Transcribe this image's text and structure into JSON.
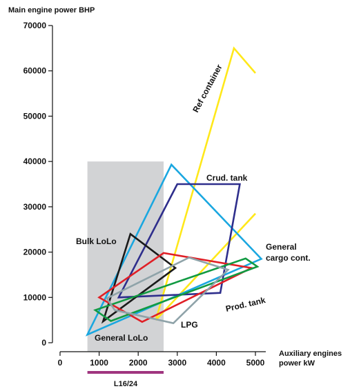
{
  "chart_data": {
    "type": "line",
    "ylabel": "Main engine power BHP",
    "xlabel": [
      "Auxiliary engines",
      "power kW"
    ],
    "xlim": [
      0,
      5300
    ],
    "ylim": [
      0,
      70000
    ],
    "x_ticks": [
      0,
      1000,
      2000,
      3000,
      4000,
      5000
    ],
    "y_ticks": [
      0,
      10000,
      20000,
      30000,
      40000,
      50000,
      60000,
      70000
    ],
    "x_tick_labels": [
      "0",
      "1000",
      "2000",
      "3000",
      "4000",
      "5000"
    ],
    "y_tick_labels": [
      "0",
      "10000",
      "20000",
      "30000",
      "40000",
      "50000",
      "60000",
      "70000"
    ],
    "grid": false,
    "shaded_band": {
      "x": [
        700,
        2650
      ],
      "y": [
        0,
        40000
      ],
      "color": "#d2d3d5"
    },
    "range_bar": {
      "label": "L16/24",
      "x": [
        700,
        2650
      ],
      "color": "#a0357f"
    },
    "series": [
      {
        "name": "Ref container",
        "color": "#ffe81a",
        "closed": false,
        "x": [
          2450,
          4450,
          5000
        ],
        "y": [
          5000,
          65000,
          59500
        ]
      },
      {
        "name": "Ref container",
        "color": "#ffe81a",
        "closed": false,
        "x": [
          2450,
          5000
        ],
        "y": [
          5000,
          28500
        ]
      },
      {
        "name": "General cargo cont.",
        "color": "#1aa7e0",
        "closed": true,
        "x": [
          700,
          2850,
          5150
        ],
        "y": [
          1800,
          39300,
          18500
        ]
      },
      {
        "name": "Crud. tank",
        "color": "#2e2e8c",
        "closed": true,
        "x": [
          1500,
          3000,
          4600,
          4100
        ],
        "y": [
          10000,
          35000,
          35000,
          11000
        ]
      },
      {
        "name": "Bulk LoLo",
        "color": "#1a1a1a",
        "closed": true,
        "x": [
          1100,
          1800,
          2950
        ],
        "y": [
          4700,
          24000,
          16500
        ]
      },
      {
        "name": "Prod. tank",
        "color": "#e01f26",
        "closed": true,
        "x": [
          1000,
          2650,
          4900,
          2100
        ],
        "y": [
          10000,
          19800,
          16500,
          4600
        ]
      },
      {
        "name": "",
        "color": "#119a42",
        "closed": true,
        "x": [
          900,
          4750,
          5050,
          1300
        ],
        "y": [
          7200,
          18600,
          16800,
          4800
        ]
      },
      {
        "name": "LPG",
        "color": "#8fa3a9",
        "closed": true,
        "x": [
          1200,
          3300,
          4300,
          2900,
          1400
        ],
        "y": [
          9800,
          18800,
          16100,
          4300,
          7200
        ]
      }
    ],
    "annotations": [
      {
        "id": "ref",
        "text": "Ref container"
      },
      {
        "id": "crud",
        "text": "Crud. tank"
      },
      {
        "id": "bulk",
        "text": "Bulk LoLo"
      },
      {
        "id": "gen1",
        "text": "General"
      },
      {
        "id": "gen2",
        "text": "cargo cont."
      },
      {
        "id": "prod",
        "text": "Prod. tank"
      },
      {
        "id": "lpg",
        "text": "LPG"
      },
      {
        "id": "glolo",
        "text": "General LoLo"
      }
    ]
  }
}
